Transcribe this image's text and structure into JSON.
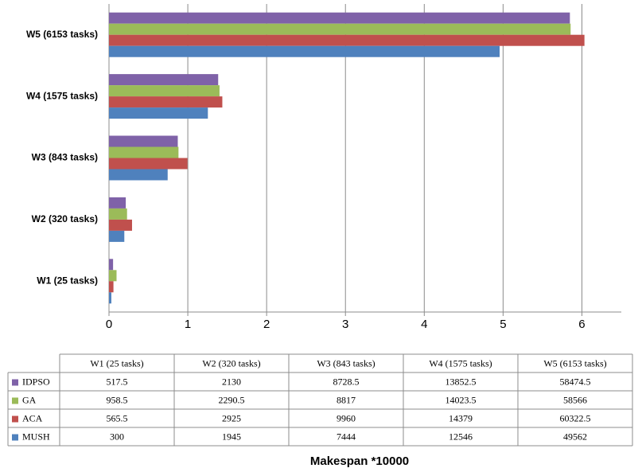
{
  "chart_data": {
    "type": "barh",
    "x_label": "Makespan *10000",
    "categories": [
      "W1 (25 tasks)",
      "W2 (320 tasks)",
      "W3  (843 tasks)",
      "W4  (1575 tasks)",
      "W5  (6153 tasks)"
    ],
    "series": [
      {
        "name": "IDPSO",
        "color": "#7f62a8",
        "values": [
          0.05175,
          0.213,
          0.87285,
          1.38525,
          5.84745
        ],
        "value_labels": [
          "517.5",
          "2130",
          "8728.5",
          "13852.5",
          "58474.5"
        ]
      },
      {
        "name": "GA",
        "color": "#9bbb59",
        "values": [
          0.09585,
          0.22905,
          0.8817,
          1.40235,
          5.8566
        ],
        "value_labels": [
          "958.5",
          "2290.5",
          "8817",
          "14023.5",
          "58566"
        ]
      },
      {
        "name": "ACA",
        "color": "#c0504d",
        "values": [
          0.05655,
          0.2925,
          0.996,
          1.4379,
          6.03225
        ],
        "value_labels": [
          "565.5",
          "2925",
          "9960",
          "14379",
          "60322.5"
        ]
      },
      {
        "name": "MUSH",
        "color": "#4f81bd",
        "values": [
          0.03,
          0.1945,
          0.7444,
          1.2546,
          4.9562
        ],
        "value_labels": [
          "300",
          "1945",
          "7444",
          "12546",
          "49562"
        ]
      }
    ],
    "xlim": [
      0,
      6.5
    ],
    "xticks": [
      0,
      1,
      2,
      3,
      4,
      5,
      6
    ],
    "grid": true
  }
}
